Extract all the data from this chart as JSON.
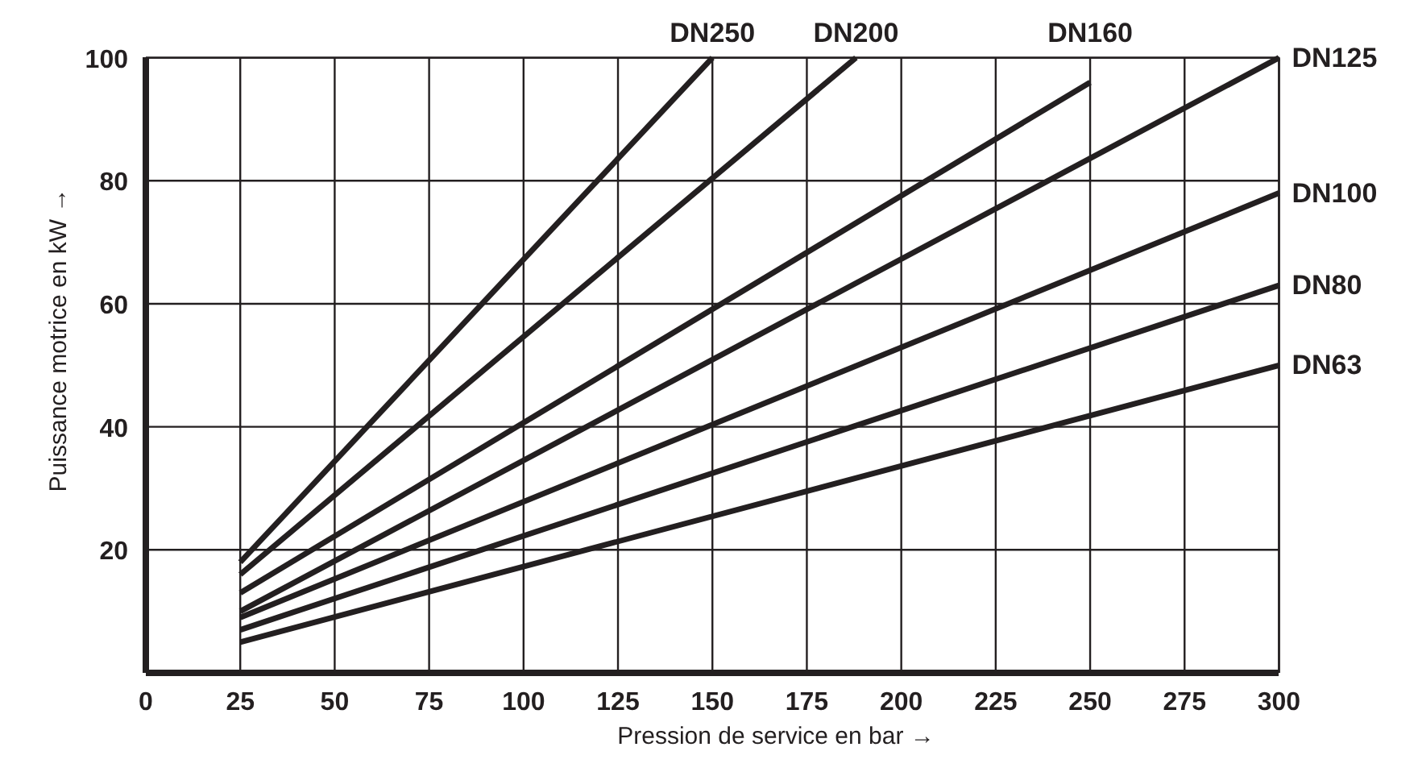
{
  "chart_data": {
    "type": "line",
    "xlabel": "Pression de service en bar →",
    "ylabel": "Puissance motrice en kW →",
    "xlim": [
      0,
      300
    ],
    "ylim": [
      0,
      100
    ],
    "xticks": [
      0,
      25,
      50,
      75,
      100,
      125,
      150,
      175,
      200,
      225,
      250,
      275,
      300
    ],
    "yticks": [
      20,
      40,
      60,
      80,
      100
    ],
    "grid": true,
    "marker": "none",
    "line_style": "solid",
    "series": [
      {
        "name": "DN250",
        "color": "#231f20",
        "x": [
          25,
          150
        ],
        "values": [
          18,
          100
        ]
      },
      {
        "name": "DN200",
        "color": "#231f20",
        "x": [
          25,
          188
        ],
        "values": [
          16,
          100
        ]
      },
      {
        "name": "DN160",
        "color": "#231f20",
        "x": [
          25,
          250
        ],
        "values": [
          13,
          96
        ]
      },
      {
        "name": "DN125",
        "color": "#231f20",
        "x": [
          25,
          300
        ],
        "values": [
          10,
          100
        ]
      },
      {
        "name": "DN100",
        "color": "#231f20",
        "x": [
          25,
          300
        ],
        "values": [
          9,
          78
        ]
      },
      {
        "name": "DN80",
        "color": "#231f20",
        "x": [
          25,
          300
        ],
        "values": [
          7,
          63
        ]
      },
      {
        "name": "DN63",
        "color": "#231f20",
        "x": [
          25,
          300
        ],
        "values": [
          5,
          50
        ]
      }
    ]
  }
}
